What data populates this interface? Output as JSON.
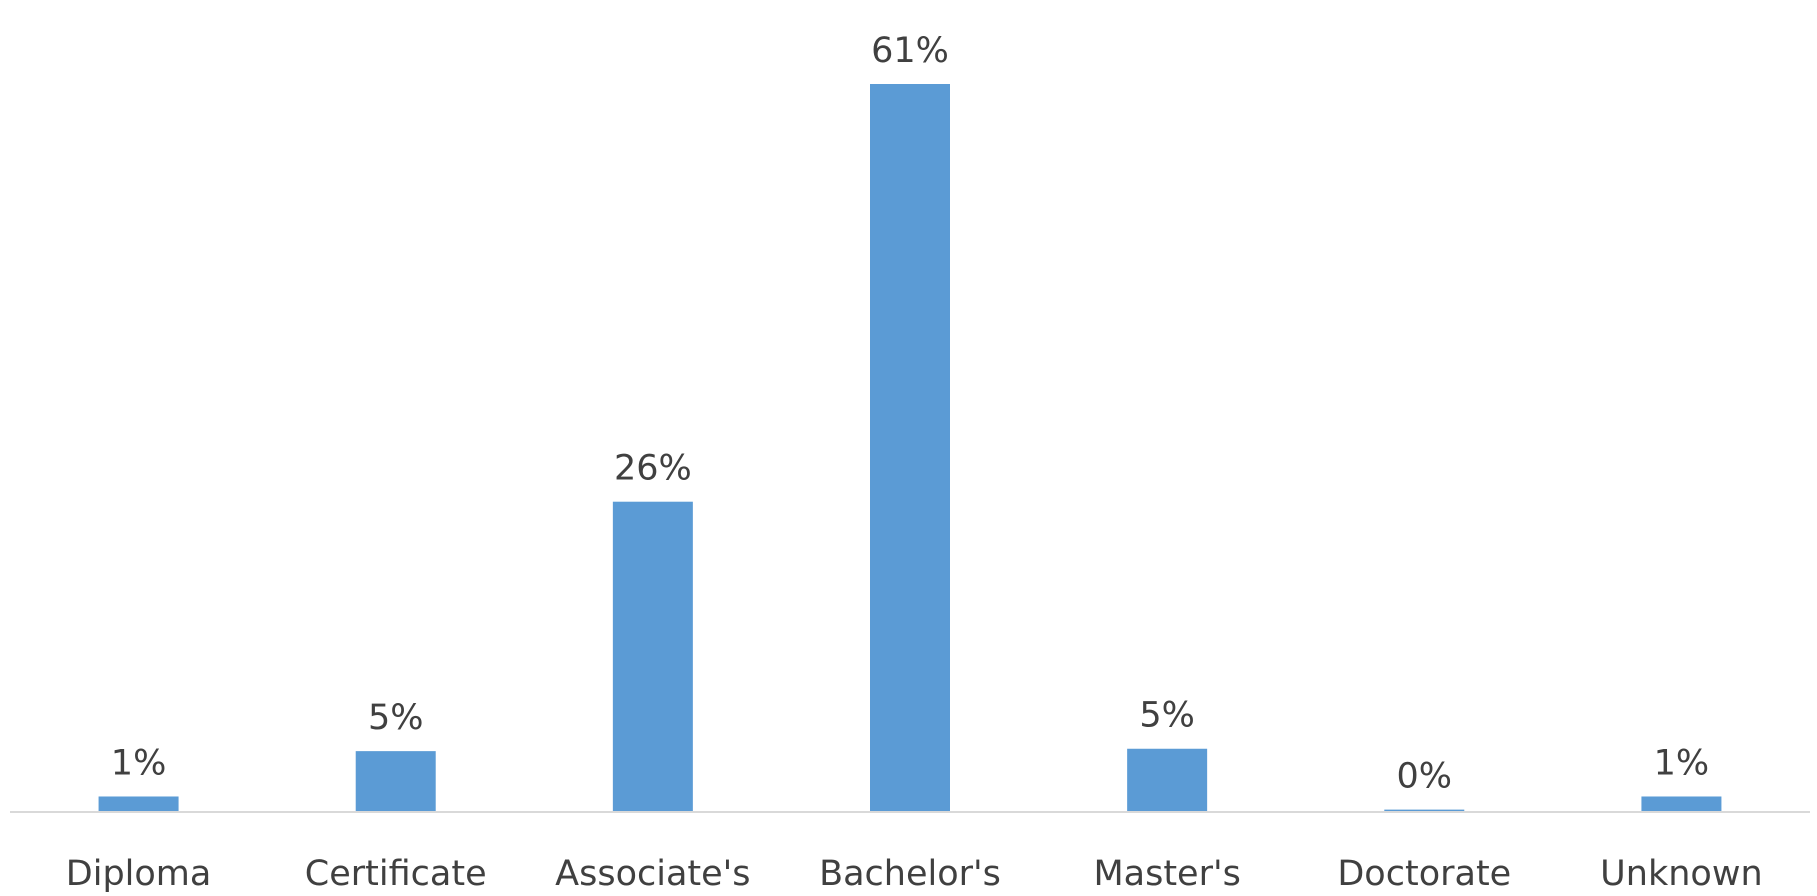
{
  "chart_data": {
    "type": "bar",
    "categories": [
      "Diploma",
      "Certificate",
      "Associate's",
      "Bachelor's",
      "Master's",
      "Doctorate",
      "Unknown"
    ],
    "values": [
      1.3,
      5.1,
      26.0,
      61.0,
      5.3,
      0.2,
      1.3
    ],
    "data_labels": [
      "1%",
      "5%",
      "26%",
      "61%",
      "5%",
      "0%",
      "1%"
    ],
    "title": "",
    "xlabel": "",
    "ylabel": "",
    "ylim": [
      0,
      61
    ],
    "grid": false,
    "legend": "none",
    "bar_color": "#5B9BD5",
    "axis_color": "#D9D9D9",
    "text_color": "#404040"
  }
}
